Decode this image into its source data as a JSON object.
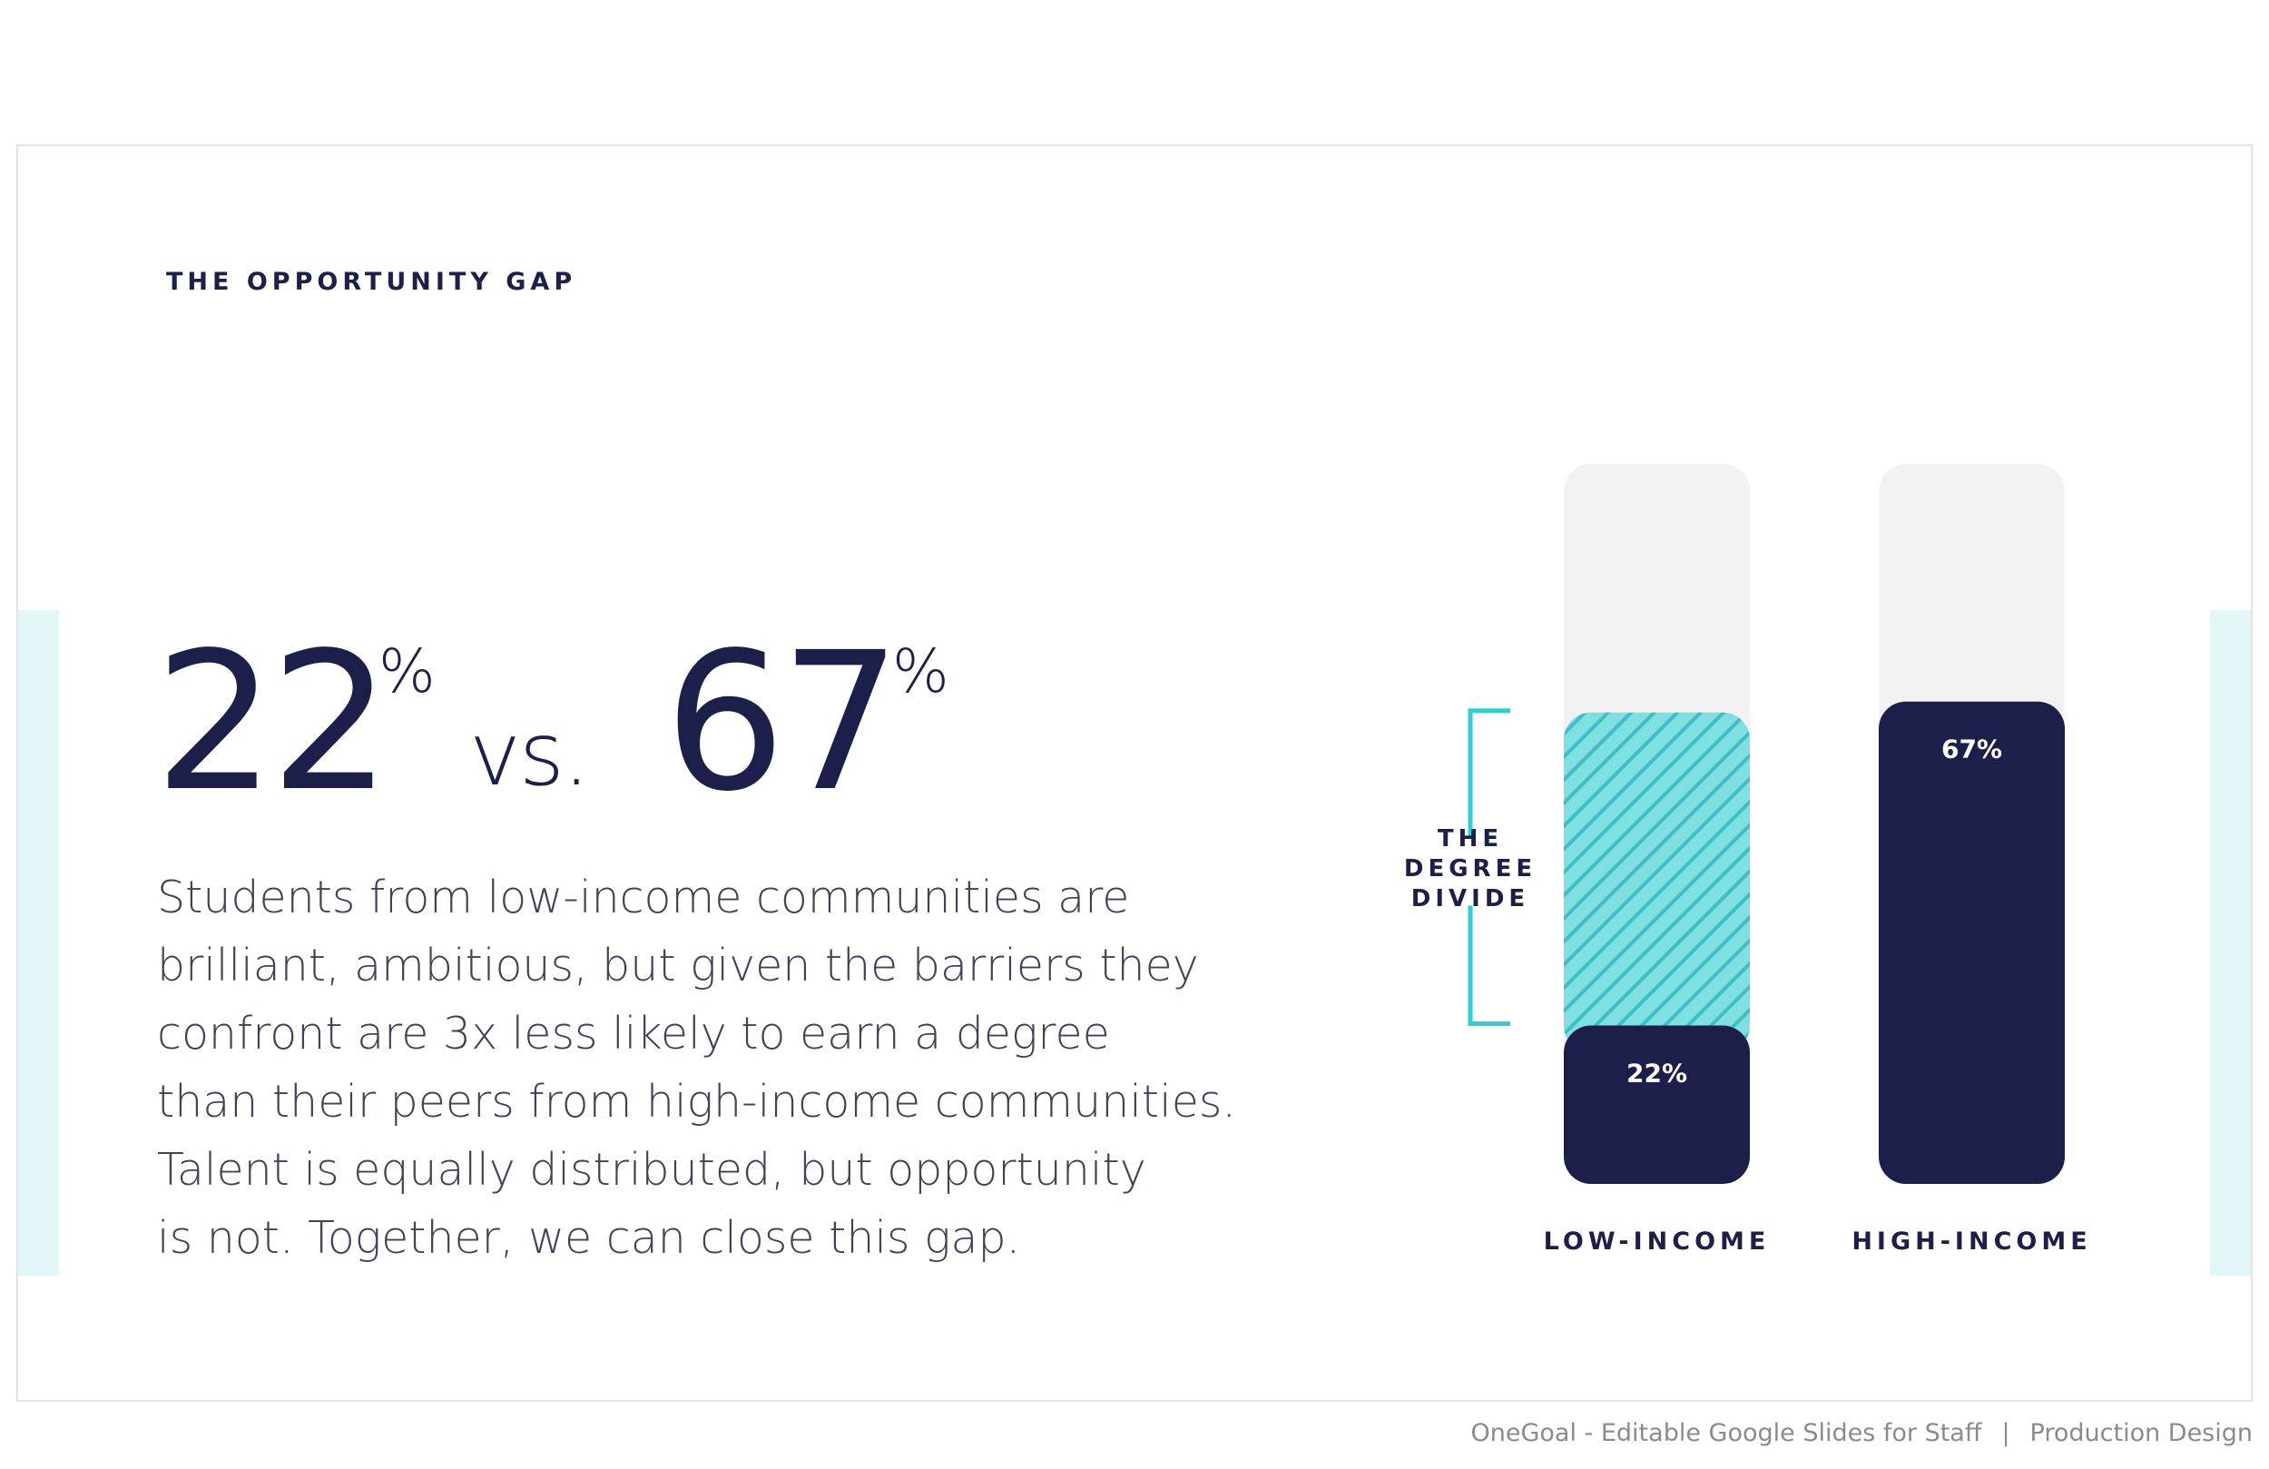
{
  "slide": {
    "eyebrow": "THE OPPORTUNITY GAP",
    "stat": {
      "low_value": "22",
      "low_unit": "%",
      "vs": "vs.",
      "high_value": "67",
      "high_unit": "%"
    },
    "body_lines": [
      "Students from low-income communities are",
      "brilliant, ambitious, but given the barriers they",
      "confront are 3x less likely to earn a degree",
      "than their peers from high-income communities.",
      "Talent is equally distributed, but opportunity",
      "is not. Together, we can close this gap."
    ]
  },
  "footer": {
    "left": "OneGoal  - Editable Google Slides for Staff",
    "separator": "|",
    "right": "Production Design"
  },
  "chart_data": {
    "type": "bar",
    "categories": [
      "LOW-INCOME",
      "HIGH-INCOME"
    ],
    "values": [
      22,
      67
    ],
    "value_labels": [
      "22%",
      "67%"
    ],
    "ylim": [
      0,
      100
    ],
    "annotation": {
      "text_lines": [
        "THE",
        "DEGREE",
        "DIVIDE"
      ],
      "from_value": 22,
      "to_value": 67
    },
    "colors": {
      "bar": "#1b1f4a",
      "track": "#f2f2f2",
      "gap_hatch_bg": "#7fe0e2",
      "gap_hatch_line": "#3fbfc4",
      "bracket": "#2ecfd2",
      "label": "#1b1f4a",
      "value_text": "#ffffff"
    }
  },
  "theme": {
    "accent_band": "#e2f6f8",
    "text_dark": "#1b1f4a",
    "body_text": "#3f4258",
    "footer_text": "#8b8b8b"
  }
}
